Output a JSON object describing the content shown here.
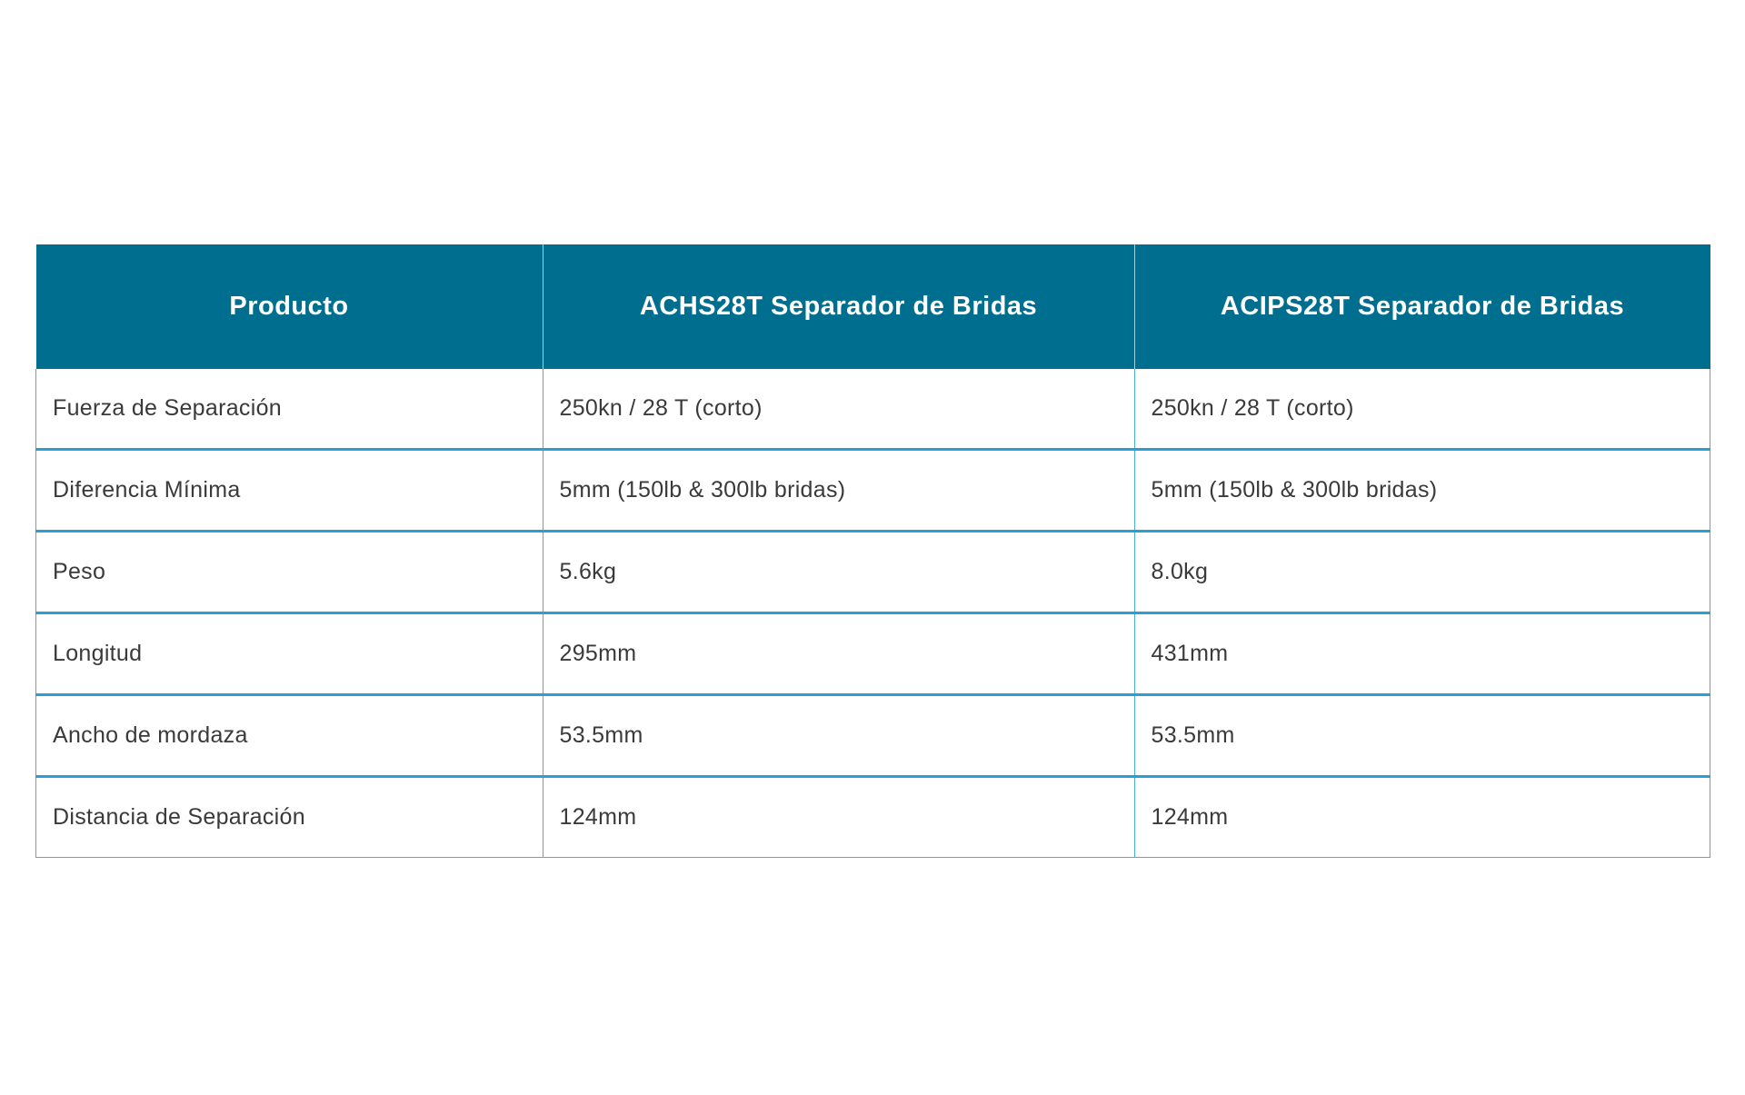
{
  "headers": [
    "Producto",
    "ACHS28T Separador de Bridas",
    "ACIPS28T Separador de Bridas"
  ],
  "rows": [
    [
      "Fuerza de Separación",
      "250kn / 28 T (corto)",
      "250kn / 28 T (corto)"
    ],
    [
      "Diferencia Mínima",
      "5mm (150lb & 300lb bridas)",
      "5mm (150lb & 300lb bridas)"
    ],
    [
      "Peso",
      "5.6kg",
      "8.0kg"
    ],
    [
      "Longitud",
      "295mm",
      "431mm"
    ],
    [
      "Ancho de mordaza",
      "53.5mm",
      "53.5mm"
    ],
    [
      "Distancia de Separación",
      "124mm",
      "124mm"
    ]
  ],
  "colors": {
    "header_bg": "#006e8f",
    "border": "#2a9fd4"
  }
}
